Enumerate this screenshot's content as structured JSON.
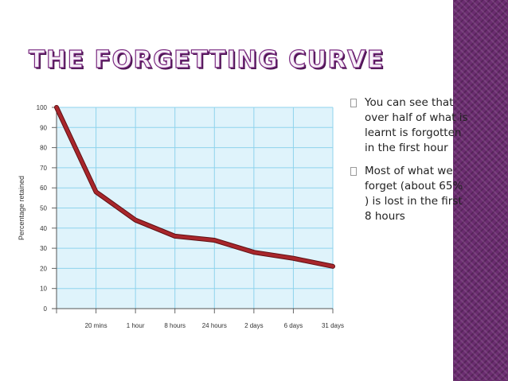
{
  "slide": {
    "title": "THE FORGETTING CURVE",
    "colors": {
      "accent": "#7a2a80",
      "band": "#6b2c70",
      "curve": "#a8262b",
      "plot_bg": "#dff3fb",
      "grid": "#8fd3ec"
    },
    "bullets": [
      {
        "icon": "bullet-box-icon",
        "text": "You can see that over half of what is learnt is forgotten in the first hour"
      },
      {
        "icon": "bullet-box-icon",
        "text": "Most of what we forget (about 65% ) is lost in the first 8 hours"
      }
    ]
  },
  "chart_data": {
    "type": "line",
    "title": "",
    "xlabel": "",
    "ylabel": "Percentage retained",
    "categories": [
      "",
      "20 mins",
      "1 hour",
      "8 hours",
      "24 hours",
      "2 days",
      "6 days",
      "31 days"
    ],
    "series": [
      {
        "values": [
          100,
          58,
          44,
          36,
          34,
          28,
          25,
          21
        ]
      }
    ],
    "ylim": [
      0,
      100
    ],
    "yticks": [
      0,
      10,
      20,
      30,
      40,
      50,
      60,
      70,
      80,
      90,
      100
    ],
    "grid": true,
    "legend": "none"
  }
}
